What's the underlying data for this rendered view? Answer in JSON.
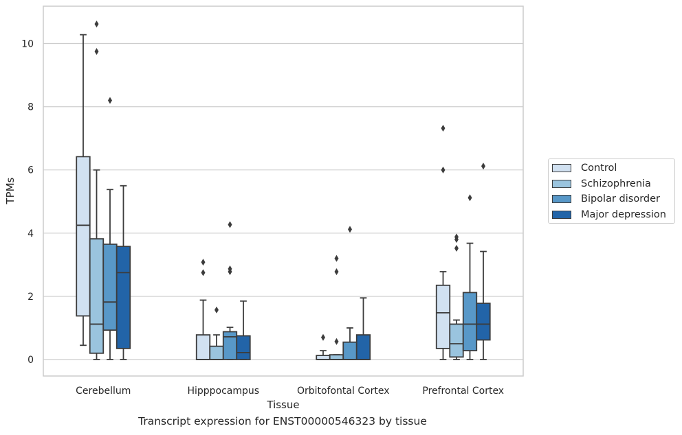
{
  "chart_data": {
    "type": "box",
    "title": "Transcript expression for ENST00000546323 by tissue",
    "xlabel": "Tissue",
    "ylabel": "TPMs",
    "ylim": [
      -0.5,
      11.2
    ],
    "yticks": [
      0,
      2,
      4,
      6,
      8,
      10
    ],
    "grid": "horizontal",
    "legend_position": "right-outside",
    "categories": [
      "Cerebellum",
      "Hipppocampus",
      "Orbitofontal Cortex",
      "Prefrontal Cortex"
    ],
    "series": [
      {
        "name": "Control",
        "color": "#d1e1f1",
        "boxes": [
          {
            "whislo": 0.45,
            "q1": 1.38,
            "med": 4.25,
            "q3": 6.42,
            "whishi": 10.28,
            "fliers": []
          },
          {
            "whislo": 0,
            "q1": 0,
            "med": 0,
            "q3": 0.78,
            "whishi": 1.88,
            "fliers": [
              2.75,
              3.08
            ]
          },
          {
            "whislo": 0,
            "q1": 0,
            "med": 0,
            "q3": 0.13,
            "whishi": 0.28,
            "fliers": [
              0.7
            ]
          },
          {
            "whislo": 0,
            "q1": 0.35,
            "med": 1.48,
            "q3": 2.35,
            "whishi": 2.78,
            "fliers": [
              6.0,
              7.32
            ]
          }
        ]
      },
      {
        "name": "Schizophrenia",
        "color": "#9ac4de",
        "boxes": [
          {
            "whislo": 0,
            "q1": 0.2,
            "med": 1.12,
            "q3": 3.82,
            "whishi": 6.0,
            "fliers": [
              9.75,
              10.62
            ]
          },
          {
            "whislo": 0,
            "q1": 0,
            "med": 0,
            "q3": 0.42,
            "whishi": 0.78,
            "fliers": [
              1.57
            ]
          },
          {
            "whislo": 0,
            "q1": 0,
            "med": 0,
            "q3": 0.15,
            "whishi": 0.15,
            "fliers": [
              0.57,
              2.78,
              3.2
            ]
          },
          {
            "whislo": 0,
            "q1": 0.08,
            "med": 0.5,
            "q3": 1.12,
            "whishi": 1.25,
            "fliers": [
              3.52,
              3.8,
              3.88
            ]
          }
        ]
      },
      {
        "name": "Bipolar disorder",
        "color": "#5898c8",
        "boxes": [
          {
            "whislo": 0,
            "q1": 0.93,
            "med": 1.82,
            "q3": 3.65,
            "whishi": 5.38,
            "fliers": [
              8.2
            ]
          },
          {
            "whislo": 0,
            "q1": 0,
            "med": 0.72,
            "q3": 0.88,
            "whishi": 1.02,
            "fliers": [
              2.78,
              2.87,
              4.27
            ]
          },
          {
            "whislo": 0,
            "q1": 0,
            "med": 0,
            "q3": 0.55,
            "whishi": 1.0,
            "fliers": [
              4.12
            ]
          },
          {
            "whislo": 0,
            "q1": 0.28,
            "med": 1.12,
            "q3": 2.12,
            "whishi": 3.68,
            "fliers": [
              5.12
            ]
          }
        ]
      },
      {
        "name": "Major depression",
        "color": "#2264a8",
        "boxes": [
          {
            "whislo": 0,
            "q1": 0.35,
            "med": 2.75,
            "q3": 3.58,
            "whishi": 5.5,
            "fliers": []
          },
          {
            "whislo": 0,
            "q1": 0,
            "med": 0.22,
            "q3": 0.75,
            "whishi": 1.85,
            "fliers": []
          },
          {
            "whislo": 0,
            "q1": 0,
            "med": 0,
            "q3": 0.78,
            "whishi": 1.95,
            "fliers": []
          },
          {
            "whislo": 0,
            "q1": 0.62,
            "med": 1.12,
            "q3": 1.78,
            "whishi": 3.42,
            "fliers": [
              6.12
            ]
          }
        ]
      }
    ]
  }
}
